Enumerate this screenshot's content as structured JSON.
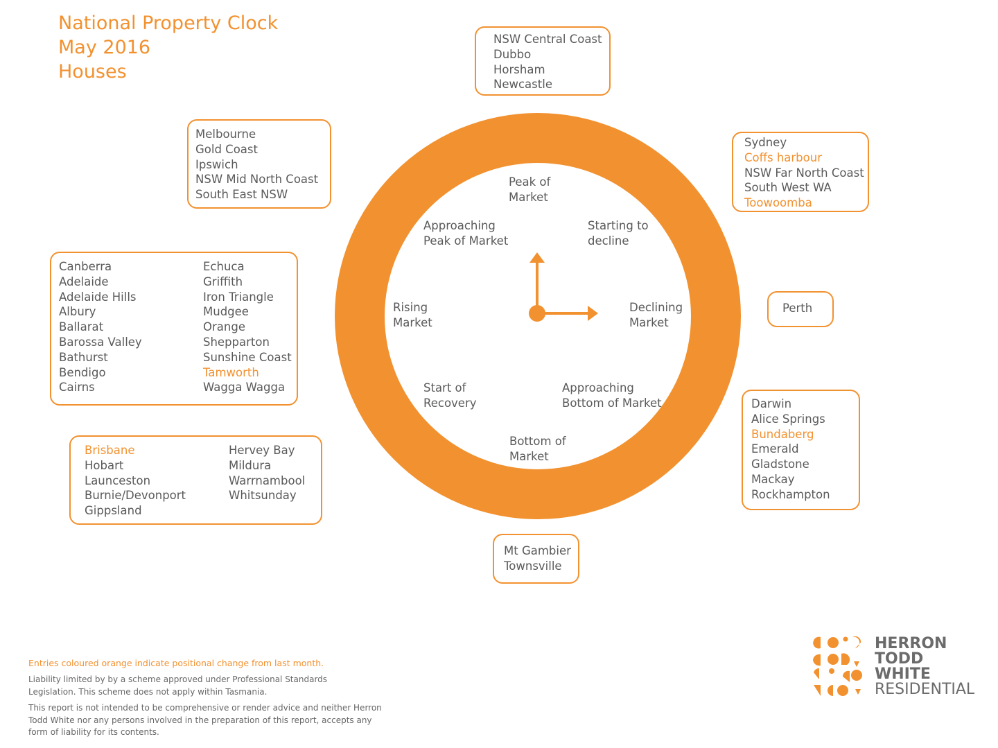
{
  "title": {
    "line1": "National Property Clock",
    "line2": "May 2016",
    "line3": "Houses"
  },
  "colors": {
    "accent": "#f2912f",
    "text": "#5a5a5a"
  },
  "clock": {
    "phases": {
      "peak_line1": "Peak of",
      "peak_line2": "Market",
      "starting_decline_line1": "Starting to",
      "starting_decline_line2": "decline",
      "declining_line1": "Declining",
      "declining_line2": "Market",
      "approaching_bottom_line1": "Approaching",
      "approaching_bottom_line2": "Bottom of Market",
      "bottom_line1": "Bottom of",
      "bottom_line2": "Market",
      "start_recovery_line1": "Start of",
      "start_recovery_line2": "Recovery",
      "rising_line1": "Rising",
      "rising_line2": "Market",
      "approaching_peak_line1": "Approaching",
      "approaching_peak_line2": "Peak of Market"
    },
    "hands": {
      "hour_points_to": "Declining Market",
      "minute_points_to": "Peak of Market"
    }
  },
  "groups": {
    "peak": [
      {
        "name": "NSW Central Coast",
        "changed": false
      },
      {
        "name": "Dubbo",
        "changed": false
      },
      {
        "name": "Horsham",
        "changed": false
      },
      {
        "name": "Newcastle",
        "changed": false
      }
    ],
    "starting_decline": [
      {
        "name": "Sydney",
        "changed": false
      },
      {
        "name": "Coffs harbour",
        "changed": true
      },
      {
        "name": "NSW Far North Coast",
        "changed": false
      },
      {
        "name": "South West WA",
        "changed": false
      },
      {
        "name": "Toowoomba",
        "changed": true
      }
    ],
    "declining": [
      {
        "name": "Perth",
        "changed": false
      }
    ],
    "approaching_bottom": [
      {
        "name": "Darwin",
        "changed": false
      },
      {
        "name": "Alice Springs",
        "changed": false
      },
      {
        "name": "Bundaberg",
        "changed": true
      },
      {
        "name": "Emerald",
        "changed": false
      },
      {
        "name": "Gladstone",
        "changed": false
      },
      {
        "name": "Mackay",
        "changed": false
      },
      {
        "name": "Rockhampton",
        "changed": false
      }
    ],
    "bottom": [
      {
        "name": "Mt Gambier",
        "changed": false
      },
      {
        "name": "Townsville",
        "changed": false
      }
    ],
    "start_recovery_col1": [
      {
        "name": "Brisbane",
        "changed": true
      },
      {
        "name": "Hobart",
        "changed": false
      },
      {
        "name": "Launceston",
        "changed": false
      },
      {
        "name": "Burnie/Devonport",
        "changed": false
      },
      {
        "name": "Gippsland",
        "changed": false
      }
    ],
    "start_recovery_col2": [
      {
        "name": "Hervey Bay",
        "changed": false
      },
      {
        "name": "Mildura",
        "changed": false
      },
      {
        "name": "Warrnambool",
        "changed": false
      },
      {
        "name": "Whitsunday",
        "changed": false
      }
    ],
    "rising_col1": [
      {
        "name": "Canberra",
        "changed": false
      },
      {
        "name": "Adelaide",
        "changed": false
      },
      {
        "name": "Adelaide Hills",
        "changed": false
      },
      {
        "name": "Albury",
        "changed": false
      },
      {
        "name": "Ballarat",
        "changed": false
      },
      {
        "name": "Barossa Valley",
        "changed": false
      },
      {
        "name": "Bathurst",
        "changed": false
      },
      {
        "name": "Bendigo",
        "changed": false
      },
      {
        "name": "Cairns",
        "changed": false
      }
    ],
    "rising_col2": [
      {
        "name": "Echuca",
        "changed": false
      },
      {
        "name": "Griffith",
        "changed": false
      },
      {
        "name": "Iron Triangle",
        "changed": false
      },
      {
        "name": "Mudgee",
        "changed": false
      },
      {
        "name": "Orange",
        "changed": false
      },
      {
        "name": "Shepparton",
        "changed": false
      },
      {
        "name": "Sunshine Coast",
        "changed": false
      },
      {
        "name": "Tamworth",
        "changed": true
      },
      {
        "name": "Wagga Wagga",
        "changed": false
      }
    ],
    "approaching_peak": [
      {
        "name": "Melbourne",
        "changed": false
      },
      {
        "name": "Gold Coast",
        "changed": false
      },
      {
        "name": "Ipswich",
        "changed": false
      },
      {
        "name": "NSW Mid North Coast",
        "changed": false
      },
      {
        "name": "South East NSW",
        "changed": false
      }
    ]
  },
  "notes": {
    "changed_legend": "Entries coloured orange indicate positional change from last month.",
    "liability": "Liability limited by by a scheme approved under Professional Standards Legislation. This scheme does not apply within Tasmania.",
    "disclaimer": "This report is not intended to be comprehensive or render advice and neither Herron Todd White nor any persons involved in the preparation of this report, accepts any form of liability for its contents."
  },
  "logo": {
    "line1": "HERRON",
    "line2": "TODD",
    "line3": "WHITE",
    "line4": "RESIDENTIAL",
    "mark_icon": "htw-dots-logo-icon"
  }
}
